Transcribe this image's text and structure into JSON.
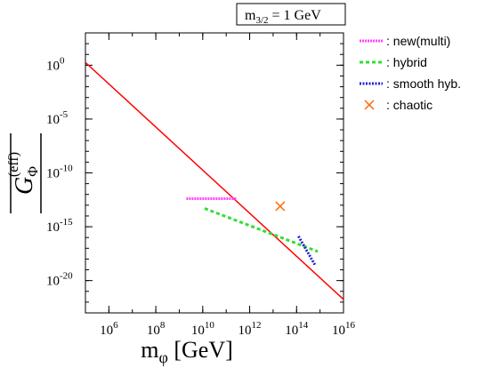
{
  "chart_data": {
    "type": "line",
    "annotation": {
      "main": "m",
      "sub": "3/2",
      "rest": " = 1 GeV"
    },
    "x_label": {
      "main": "m",
      "sub": "φ",
      "rest": " [GeV]"
    },
    "y_label": {
      "main": "G",
      "sub": "Φ",
      "sup": "(eff)"
    },
    "log_x": true,
    "log_y": true,
    "xlim": [
      100000,
      1e+16
    ],
    "ylim": [
      1e-23,
      1000
    ],
    "xticks": [
      {
        "value": 1000000,
        "label": "10",
        "exponent": "6"
      },
      {
        "value": 100000000,
        "label": "10",
        "exponent": "8"
      },
      {
        "value": 10000000000,
        "label": "10",
        "exponent": "10"
      },
      {
        "value": 1000000000000,
        "label": "10",
        "exponent": "12"
      },
      {
        "value": 100000000000000,
        "label": "10",
        "exponent": "14"
      },
      {
        "value": 1e+16,
        "label": "10",
        "exponent": "16"
      }
    ],
    "yticks": [
      {
        "value": 1,
        "label": "10",
        "exponent": "0"
      },
      {
        "value": 1e-05,
        "label": "10",
        "exponent": "-5"
      },
      {
        "value": 1e-10,
        "label": "10",
        "exponent": "-10"
      },
      {
        "value": 1e-15,
        "label": "10",
        "exponent": "-15"
      },
      {
        "value": 1e-20,
        "label": "10",
        "exponent": "-20"
      }
    ],
    "series": [
      {
        "color": "#ff0000",
        "dash": "none",
        "x": [
          100000,
          1e+16
        ],
        "values": [
          1.8,
          1.8e-22
        ]
      },
      {
        "name": ": new(multi)",
        "color": "#ff44ff",
        "dash": "2 1",
        "x": [
          2000000000,
          280000000000
        ],
        "values": [
          4e-13,
          4e-13
        ]
      },
      {
        "name": ": hybrid",
        "color": "#33dd33",
        "dash": "4 3",
        "x": [
          12000000000,
          800000000000000
        ],
        "values": [
          5e-14,
          5e-18
        ]
      },
      {
        "name": ": smooth hyb.",
        "color": "#2222cc",
        "dash": "2 1.5",
        "x": [
          120000000000000,
          600000000000000
        ],
        "values": [
          1.3e-16,
          3e-19
        ]
      },
      {
        "name": ": chaotic",
        "color": "#ff6600",
        "marker": "x",
        "x": [
          20000000000000
        ],
        "values": [
          8e-14
        ]
      }
    ]
  }
}
